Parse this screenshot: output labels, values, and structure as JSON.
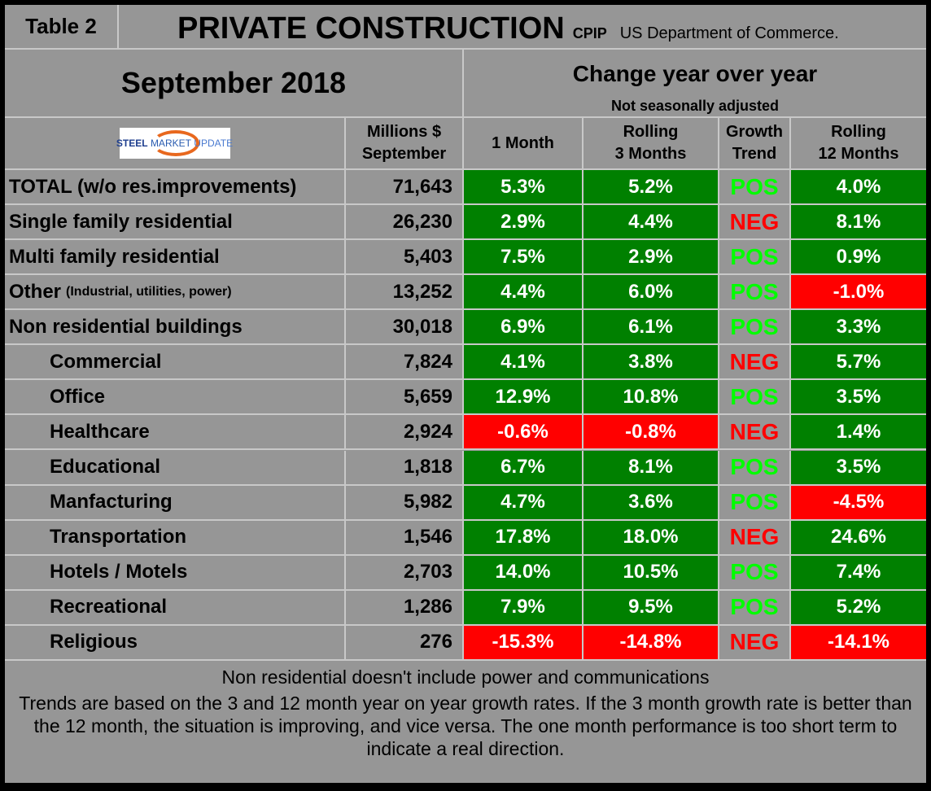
{
  "title": {
    "table_label": "Table 2",
    "main": "PRIVATE CONSTRUCTION",
    "code": "CPIP",
    "source": "US Department of Commerce."
  },
  "period": "September 2018",
  "change_header": "Change year over year",
  "adjust_note": "Not seasonally adjusted",
  "logo_text": {
    "a": "STEEL",
    "b": "MARKET",
    "c": "UPDATE"
  },
  "columns": {
    "millions": [
      "Millions $",
      "September"
    ],
    "m1": "1 Month",
    "m3": [
      "Rolling",
      "3 Months"
    ],
    "trend": [
      "Growth",
      "Trend"
    ],
    "m12": [
      "Rolling",
      "12 Months"
    ]
  },
  "colors": {
    "positive_bg": "#008000",
    "negative_bg": "#ff0000",
    "pos_text": "#00ff00",
    "neg_text": "#ff0000",
    "cell_bg": "#969696"
  },
  "rows": [
    {
      "label": "TOTAL (w/o res.improvements)",
      "note": "",
      "value": "71,643",
      "m1": "5.3%",
      "m3": "5.2%",
      "trend": "POS",
      "m12": "4.0%",
      "indent": false
    },
    {
      "label": "Single family residential",
      "note": "",
      "value": "26,230",
      "m1": "2.9%",
      "m3": "4.4%",
      "trend": "NEG",
      "m12": "8.1%",
      "indent": false
    },
    {
      "label": "Multi family residential",
      "note": "",
      "value": "5,403",
      "m1": "7.5%",
      "m3": "2.9%",
      "trend": "POS",
      "m12": "0.9%",
      "indent": false
    },
    {
      "label": "Other",
      "note": "(Industrial, utilities, power)",
      "value": "13,252",
      "m1": "4.4%",
      "m3": "6.0%",
      "trend": "POS",
      "m12": "-1.0%",
      "indent": false
    },
    {
      "label": "Non residential buildings",
      "note": "",
      "value": "30,018",
      "m1": "6.9%",
      "m3": "6.1%",
      "trend": "POS",
      "m12": "3.3%",
      "indent": false
    },
    {
      "label": "Commercial",
      "note": "",
      "value": "7,824",
      "m1": "4.1%",
      "m3": "3.8%",
      "trend": "NEG",
      "m12": "5.7%",
      "indent": true
    },
    {
      "label": "Office",
      "note": "",
      "value": "5,659",
      "m1": "12.9%",
      "m3": "10.8%",
      "trend": "POS",
      "m12": "3.5%",
      "indent": true
    },
    {
      "label": "Healthcare",
      "note": "",
      "value": "2,924",
      "m1": "-0.6%",
      "m3": "-0.8%",
      "trend": "NEG",
      "m12": "1.4%",
      "indent": true
    },
    {
      "label": "Educational",
      "note": "",
      "value": "1,818",
      "m1": "6.7%",
      "m3": "8.1%",
      "trend": "POS",
      "m12": "3.5%",
      "indent": true
    },
    {
      "label": "Manfacturing",
      "note": "",
      "value": "5,982",
      "m1": "4.7%",
      "m3": "3.6%",
      "trend": "POS",
      "m12": "-4.5%",
      "indent": true
    },
    {
      "label": "Transportation",
      "note": "",
      "value": "1,546",
      "m1": "17.8%",
      "m3": "18.0%",
      "trend": "NEG",
      "m12": "24.6%",
      "indent": true
    },
    {
      "label": "Hotels / Motels",
      "note": "",
      "value": "2,703",
      "m1": "14.0%",
      "m3": "10.5%",
      "trend": "POS",
      "m12": "7.4%",
      "indent": true
    },
    {
      "label": "Recreational",
      "note": "",
      "value": "1,286",
      "m1": "7.9%",
      "m3": "9.5%",
      "trend": "POS",
      "m12": "5.2%",
      "indent": true
    },
    {
      "label": "Religious",
      "note": "",
      "value": "276",
      "m1": "-15.3%",
      "m3": "-14.8%",
      "trend": "NEG",
      "m12": "-14.1%",
      "indent": true
    }
  ],
  "footnotes": [
    "Non residential doesn't include power and communications",
    "Trends are based on the 3 and 12 month year on year growth rates. If the 3 month growth rate is better than the 12 month, the situation is improving, and vice versa. The one month performance is too short term to indicate a real direction."
  ]
}
